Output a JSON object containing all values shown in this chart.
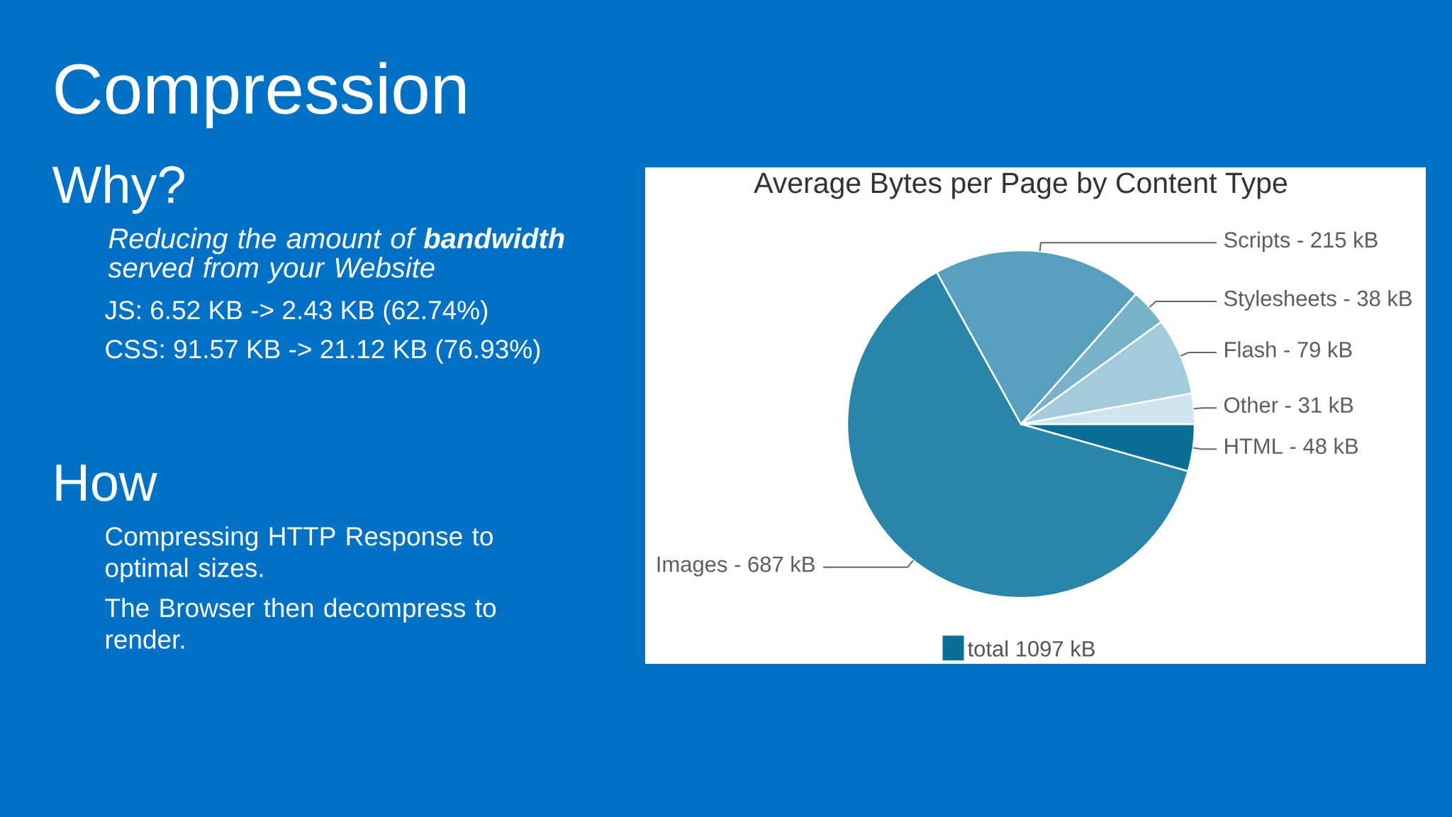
{
  "chart_data": [
    {
      "type": "other",
      "title": "Compression",
      "annotations": [
        "Why?",
        "Reducing the amount of **bandwidth** served from your Website",
        "JS: 6.52 KB -> 2.43 KB (62.74%)",
        "CSS: 91.57 KB -> 21.12 KB (76.93%)",
        "How",
        "Compressing HTTP Response to optimal sizes.",
        "The Browser then decompress to render."
      ]
    },
    {
      "type": "pie",
      "title": "Average Bytes per Page by Content Type",
      "categories": [
        "HTML -",
        "Images -",
        "Scripts -",
        "Stylesheets -",
        "Flash -",
        "Other -"
      ],
      "series": [
        {
          "name": "total 1097 kB",
          "color": "#0b6e97",
          "values": [
            48,
            687,
            215,
            38,
            79,
            31
          ],
          "value_labels": [
            "48 kB",
            "687 kB",
            "215 kB",
            "38 kB",
            "79 kB",
            "31 kB"
          ],
          "colors": [
            "#0b6e97",
            "#2a86a9",
            "#569fbd",
            "#78b2ca",
            "#a3cbdb",
            "#cfe4ec"
          ]
        }
      ],
      "legend": "bottom"
    }
  ]
}
